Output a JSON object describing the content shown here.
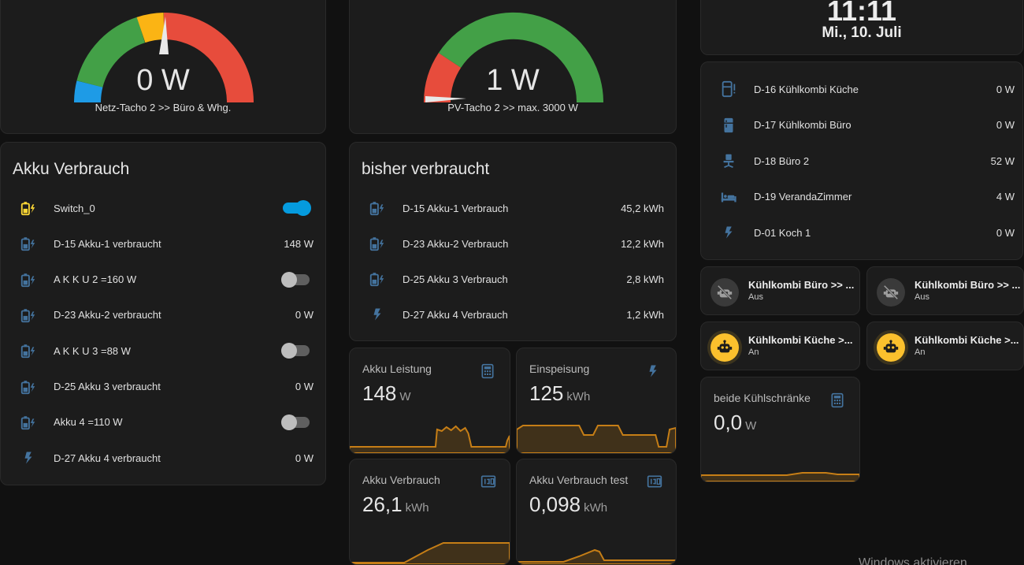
{
  "gauges": [
    {
      "value": "0 W",
      "name": "Netz-Tacho 2 >> Büro & Whg.",
      "needle_fraction": 0.52,
      "colors": {
        "blue": "#1e9be6",
        "green": "#43a047",
        "yellow": "#fbb414",
        "red": "#e74c3c"
      }
    },
    {
      "value": "1 W",
      "name": "PV-Tacho 2 >> max. 3000 W",
      "needle_fraction": 0.0,
      "colors": {
        "red": "#e74c3c",
        "green": "#43a047"
      }
    }
  ],
  "clock": {
    "time": "11:11",
    "date": "Mi., 10. Juli"
  },
  "akku": {
    "title": "Akku Verbrauch",
    "rows": [
      {
        "icon": "battery-charging-icon",
        "label": "Switch_0",
        "type": "toggle",
        "on": true
      },
      {
        "icon": "battery-charging-icon",
        "label": "D-15 Akku-1 verbraucht",
        "value": "148 W"
      },
      {
        "icon": "battery-charging-icon",
        "label": "A K K U 2 =160 W",
        "type": "toggle",
        "on": false
      },
      {
        "icon": "battery-charging-icon",
        "label": "D-23 Akku-2 verbraucht",
        "value": "0 W"
      },
      {
        "icon": "battery-charging-icon",
        "label": "A K K U 3 =88 W",
        "type": "toggle",
        "on": false
      },
      {
        "icon": "battery-charging-icon",
        "label": "D-25 Akku 3 verbraucht",
        "value": "0 W"
      },
      {
        "icon": "battery-charging-icon",
        "label": "Akku 4 =110 W",
        "type": "toggle",
        "on": false
      },
      {
        "icon": "lightning-bolt-icon",
        "label": "D-27 Akku 4 verbraucht",
        "value": "0 W"
      }
    ]
  },
  "bisher": {
    "title": "bisher verbraucht",
    "rows": [
      {
        "icon": "battery-charging-icon",
        "label": "D-15 Akku-1 Verbrauch",
        "value": "45,2 kWh"
      },
      {
        "icon": "battery-charging-icon",
        "label": "D-23 Akku-2 Verbrauch",
        "value": "12,2 kWh"
      },
      {
        "icon": "battery-charging-icon",
        "label": "D-25 Akku 3 Verbrauch",
        "value": "2,8 kWh"
      },
      {
        "icon": "lightning-bolt-icon",
        "label": "D-27 Akku 4 Verbrauch",
        "value": "1,2 kWh"
      }
    ]
  },
  "devices": {
    "rows": [
      {
        "icon": "fridge-alert-icon",
        "label": "D-16 Kühlkombi Küche",
        "value": "0 W"
      },
      {
        "icon": "fridge-icon",
        "label": "D-17 Kühlkombi Büro",
        "value": "0 W"
      },
      {
        "icon": "desk-chair-icon",
        "label": "D-18 Büro 2",
        "value": "52 W"
      },
      {
        "icon": "bed-icon",
        "label": "D-19 VerandaZimmer",
        "value": "4 W"
      },
      {
        "icon": "lightning-bolt-icon",
        "label": "D-01 Koch 1",
        "value": "0 W"
      }
    ]
  },
  "sensors": [
    {
      "name": "Akku Leistung",
      "value": "148",
      "unit": "W",
      "icon": "calculator-icon"
    },
    {
      "name": "Einspeisung",
      "value": "125",
      "unit": "kWh",
      "icon": "lightning-bolt-icon"
    },
    {
      "name": "Akku Verbrauch",
      "value": "26,1",
      "unit": "kWh",
      "icon": "counter-icon"
    },
    {
      "name": "Akku Verbrauch test",
      "value": "0,098",
      "unit": "kWh",
      "icon": "counter-icon"
    },
    {
      "name": "beide Kühlschränke",
      "value": "0,0",
      "unit": "W",
      "icon": "calculator-icon"
    }
  ],
  "tiles": [
    {
      "name": "Kühlkombi Büro >> ...",
      "state": "Aus",
      "icon": "robot-off-icon",
      "on": false
    },
    {
      "name": "Kühlkombi Büro >> ...",
      "state": "Aus",
      "icon": "robot-off-icon",
      "on": false
    },
    {
      "name": "Kühlkombi Küche >...",
      "state": "An",
      "icon": "robot-icon",
      "on": true
    },
    {
      "name": "Kühlkombi Küche >...",
      "state": "An",
      "icon": "robot-icon",
      "on": true
    }
  ],
  "watermark": "Windows aktivieren",
  "colors": {
    "accent": "#03a9f4",
    "icon_blue": "#44739e",
    "icon_yellow": "#fdd835",
    "graph": "#c67e16",
    "toggle_off": "#5f5f5f"
  }
}
